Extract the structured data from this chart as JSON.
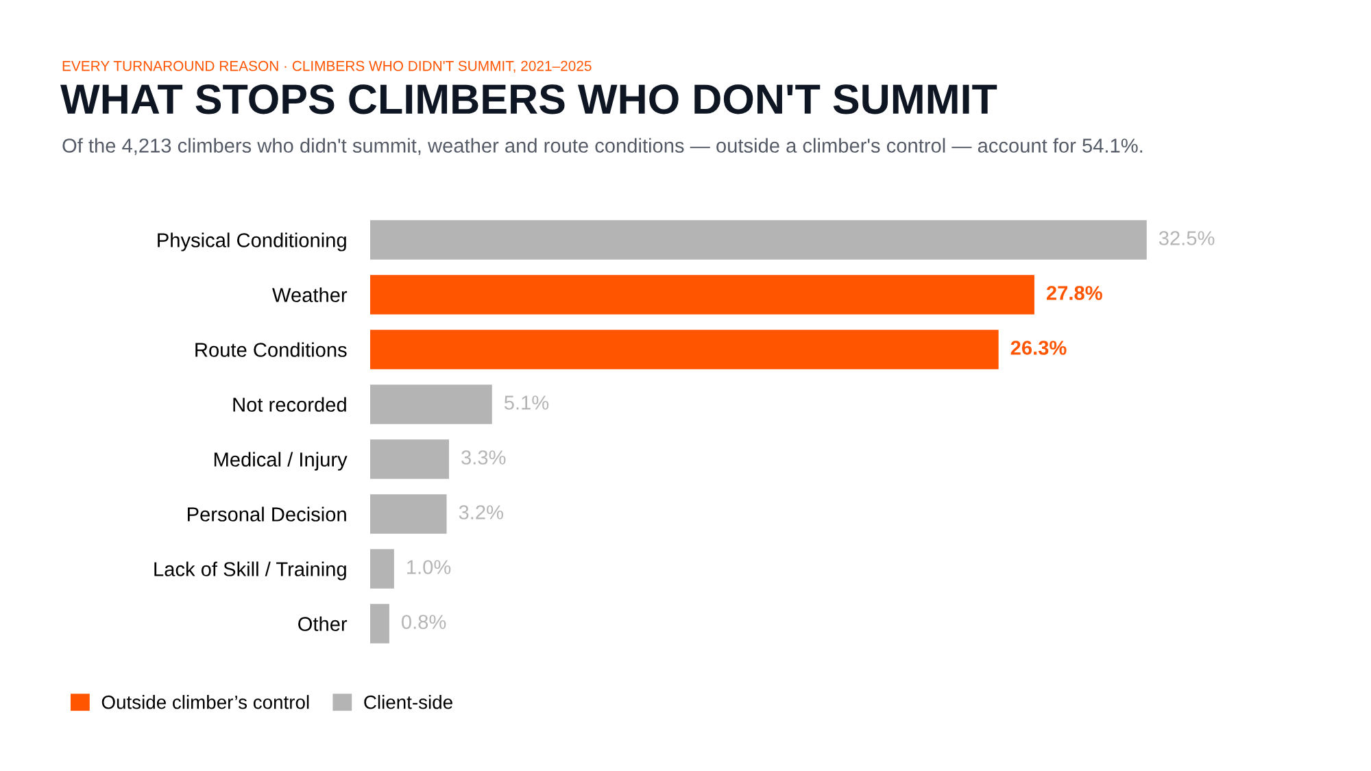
{
  "chart_data": {
    "type": "bar",
    "orientation": "horizontal",
    "title": "WHAT STOPS CLIMBERS WHO DON'T SUMMIT",
    "subtitle": "Of the 4,213 climbers who didn't summit, weather and route conditions — outside a climber's control — account for 54.1%.",
    "annotations": [
      "EVERY TURNAROUND REASON · CLIMBERS WHO DIDN'T SUMMIT, 2021–2025"
    ],
    "categories": [
      "Physical Conditioning",
      "Weather",
      "Route Conditions",
      "Not recorded",
      "Medical / Injury",
      "Personal Decision",
      "Lack of Skill / Training",
      "Other"
    ],
    "series": [
      {
        "name": "Outside climber’s control",
        "color": "#ff5500",
        "values": [
          null,
          27.8,
          26.3,
          null,
          null,
          null,
          null,
          null
        ],
        "value_labels": [
          null,
          "27.8%",
          "26.3%",
          null,
          null,
          null,
          null,
          null
        ]
      },
      {
        "name": "Client-side",
        "color": "#b4b4b4",
        "values": [
          32.5,
          null,
          null,
          5.1,
          3.3,
          3.2,
          1.0,
          0.8
        ],
        "value_labels": [
          "32.5%",
          null,
          null,
          "5.1%",
          "3.3%",
          "3.2%",
          "1.0%",
          "0.8%"
        ]
      }
    ],
    "legend": "bottom left",
    "grid": false,
    "tick_labels": "y"
  }
}
